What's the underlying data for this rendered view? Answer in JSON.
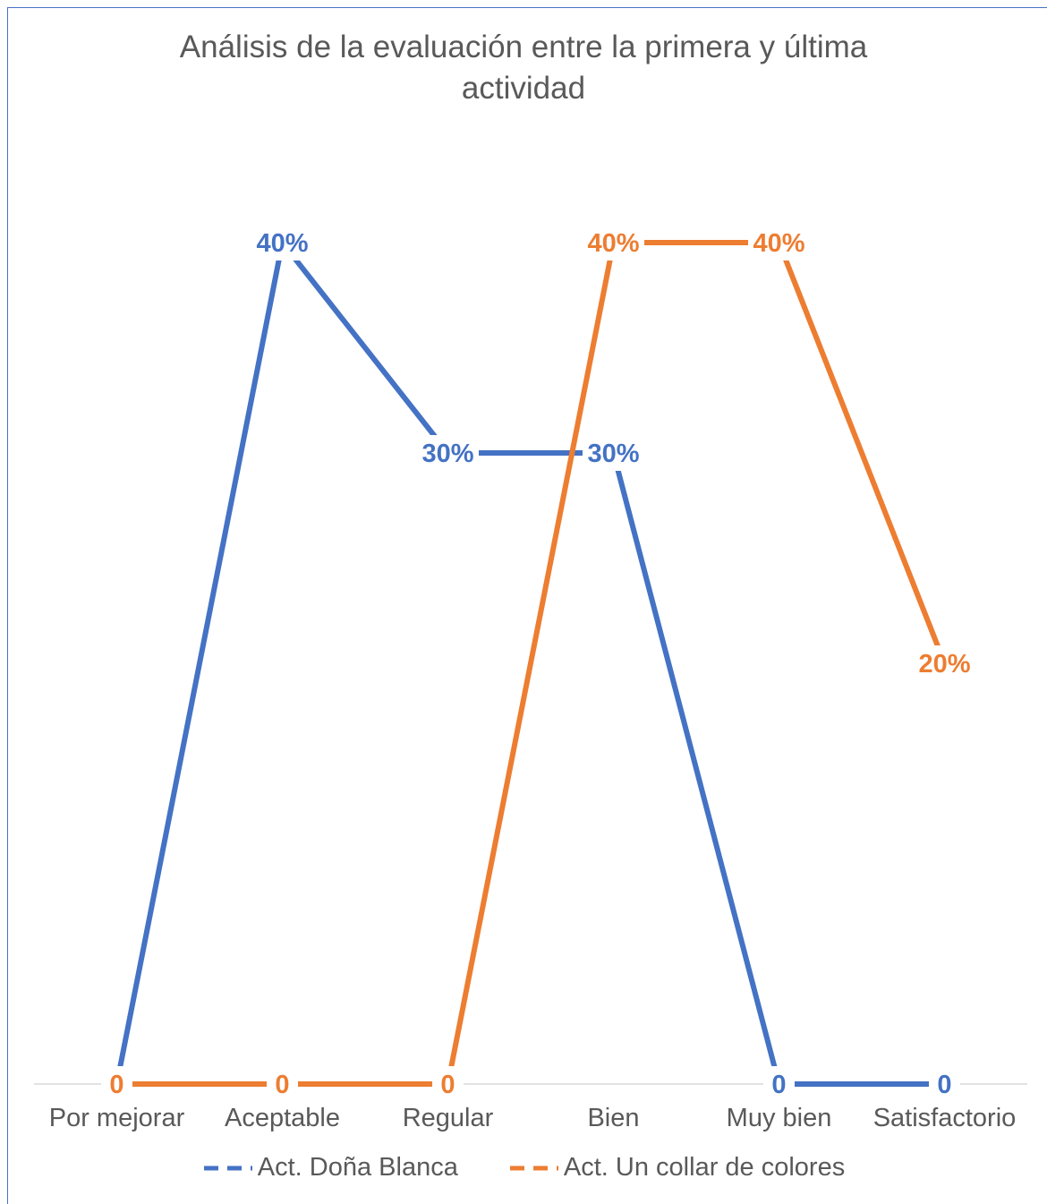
{
  "chart_data": {
    "type": "line",
    "title": "Análisis de la evaluación entre la primera y última actividad",
    "categories": [
      "Por mejorar",
      "Aceptable",
      "Regular",
      "Bien",
      "Muy bien",
      "Satisfactorio"
    ],
    "series": [
      {
        "name": "Act. Doña Blanca",
        "color": "#4472C4",
        "values": [
          0,
          40,
          30,
          30,
          0,
          0
        ],
        "labels": [
          "0",
          "40%",
          "30%",
          "30%",
          "0",
          "0"
        ]
      },
      {
        "name": "Act. Un collar de colores",
        "color": "#ED7D31",
        "values": [
          0,
          0,
          0,
          40,
          40,
          20
        ],
        "labels": [
          "0",
          "0",
          "0",
          "40%",
          "40%",
          "20%"
        ]
      }
    ],
    "ylim": [
      0,
      40
    ],
    "grid": false,
    "legend": "bottom",
    "axis_color": "#D9D9D9",
    "text_color": "#595959"
  }
}
